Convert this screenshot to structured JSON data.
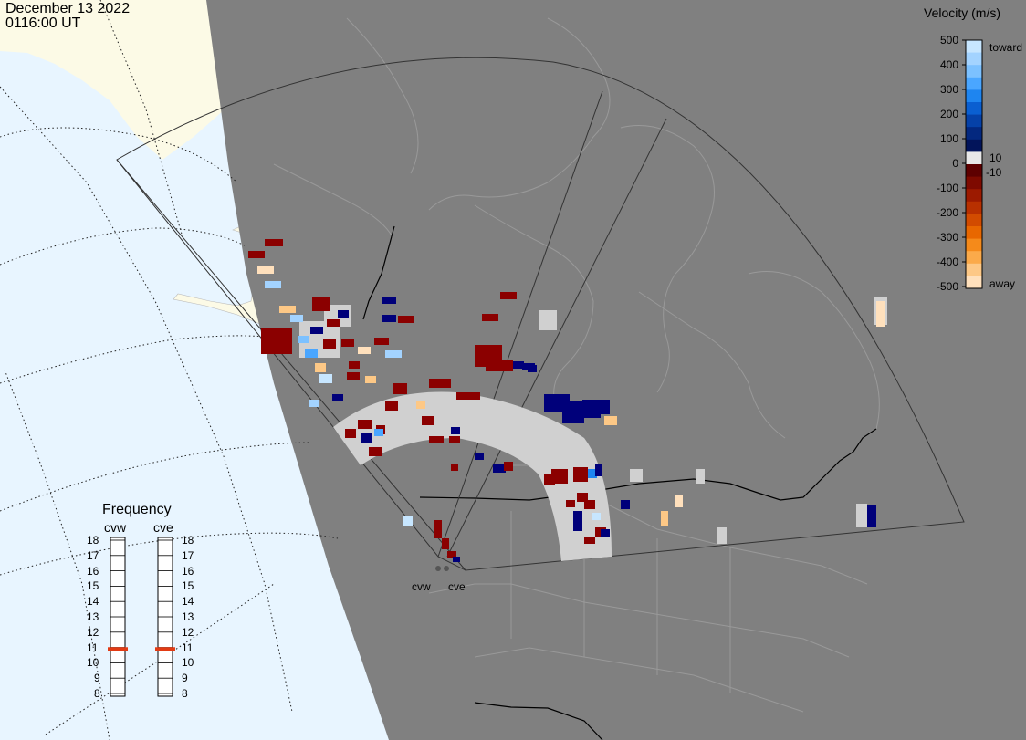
{
  "header": {
    "date": "December 13 2022",
    "time": "0116:00 UT"
  },
  "velocity_scale": {
    "title": "Velocity (m/s)",
    "ticks_left": [
      "500",
      "400",
      "300",
      "200",
      "100",
      "0",
      "-100",
      "-200",
      "-300",
      "-400",
      "-500"
    ],
    "toward_label": "toward",
    "away_label": "away",
    "threshold_pos": "10",
    "threshold_neg": "-10",
    "range_min": -500,
    "range_max": 500,
    "colors": [
      "#c7e6ff",
      "#a3d3ff",
      "#7cc1ff",
      "#4aa6ff",
      "#1e85f0",
      "#0a5fd1",
      "#0541a8",
      "#03287f",
      "#02145a",
      "#e8e8e8",
      "#5e0000",
      "#7e0a00",
      "#9c1a00",
      "#b83000",
      "#d24b00",
      "#e86700",
      "#f58a1a",
      "#fbaa4a",
      "#fdc886",
      "#ffe0bc"
    ]
  },
  "frequency_panel": {
    "title": "Frequency",
    "radars": [
      "cvw",
      "cve"
    ],
    "ticks": [
      "18",
      "17",
      "16",
      "15",
      "14",
      "13",
      "12",
      "11",
      "10",
      "9",
      "8"
    ],
    "selected_mhz": [
      10.9,
      10.9
    ],
    "marker_color": "#e23b14"
  },
  "map": {
    "radar_sites": [
      "cvw",
      "cve"
    ],
    "colors": {
      "ocean": "#e8f5ff",
      "land_day": "#fcfae6",
      "night": "#808080",
      "boundaries": "#9a9a9a",
      "fov": "#333333",
      "no_data_gray": "#d0d0d0",
      "toward_dark": "#00007a",
      "away_dark": "#8b0000"
    }
  }
}
